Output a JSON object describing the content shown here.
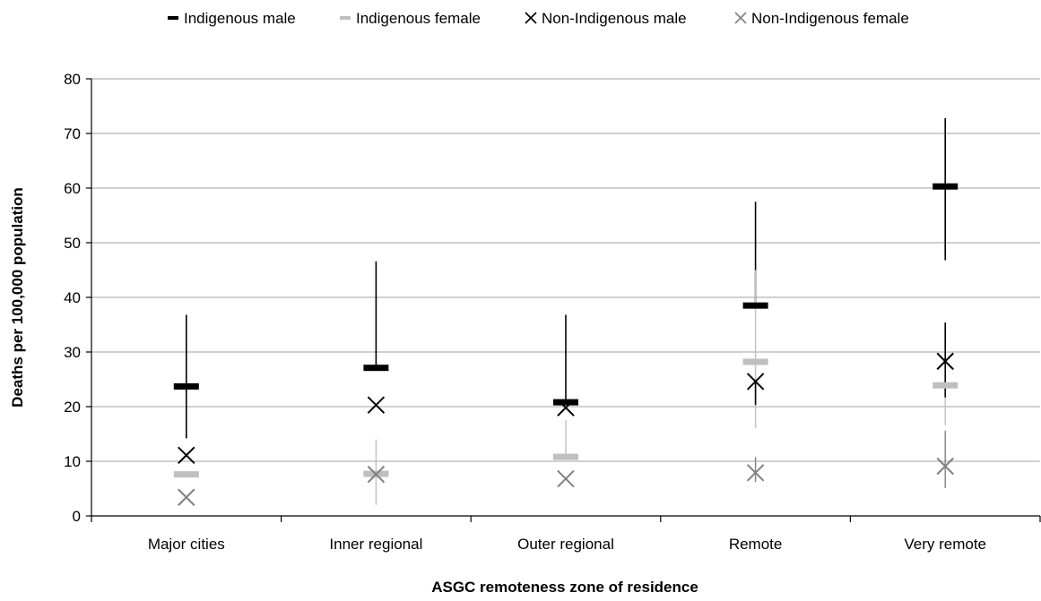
{
  "chart_data": {
    "type": "scatter",
    "title": "",
    "xlabel": "ASGC remoteness zone of residence",
    "ylabel": "Deaths per 100,000 population",
    "categories": [
      "Major cities",
      "Inner regional",
      "Outer regional",
      "Remote",
      "Very remote"
    ],
    "ylim": [
      0,
      80
    ],
    "yticks": [
      0,
      10,
      20,
      30,
      40,
      50,
      60,
      70,
      80
    ],
    "grid": true,
    "legend_position": "top",
    "series": [
      {
        "name": "Indigenous male",
        "marker": "dash",
        "color": "#000000",
        "values": [
          23.7,
          27.1,
          20.8,
          38.5,
          60.3
        ],
        "ci_low": [
          14.2,
          null,
          null,
          null,
          46.8
        ],
        "ci_high": [
          36.8,
          46.6,
          36.8,
          57.5,
          72.8
        ]
      },
      {
        "name": "Indigenous female",
        "marker": "dash",
        "color": "#bfbfbf",
        "values": [
          7.6,
          7.7,
          10.8,
          28.2,
          23.9
        ],
        "ci_low": [
          null,
          2.0,
          null,
          16.1,
          16.6
        ],
        "ci_high": [
          null,
          14.0,
          17.5,
          45.0,
          null
        ]
      },
      {
        "name": "Non-Indigenous male",
        "marker": "x",
        "color": "#000000",
        "values": [
          11.1,
          20.3,
          19.8,
          24.6,
          28.3
        ],
        "ci_low": [
          null,
          null,
          null,
          20.3,
          21.7
        ],
        "ci_high": [
          null,
          null,
          null,
          null,
          35.4
        ]
      },
      {
        "name": "Non-Indigenous female",
        "marker": "x",
        "color": "#808080",
        "values": [
          3.4,
          7.6,
          6.8,
          7.9,
          9.1
        ],
        "ci_low": [
          null,
          null,
          null,
          6.2,
          5.1
        ],
        "ci_high": [
          null,
          null,
          null,
          10.8,
          15.6
        ]
      }
    ]
  }
}
